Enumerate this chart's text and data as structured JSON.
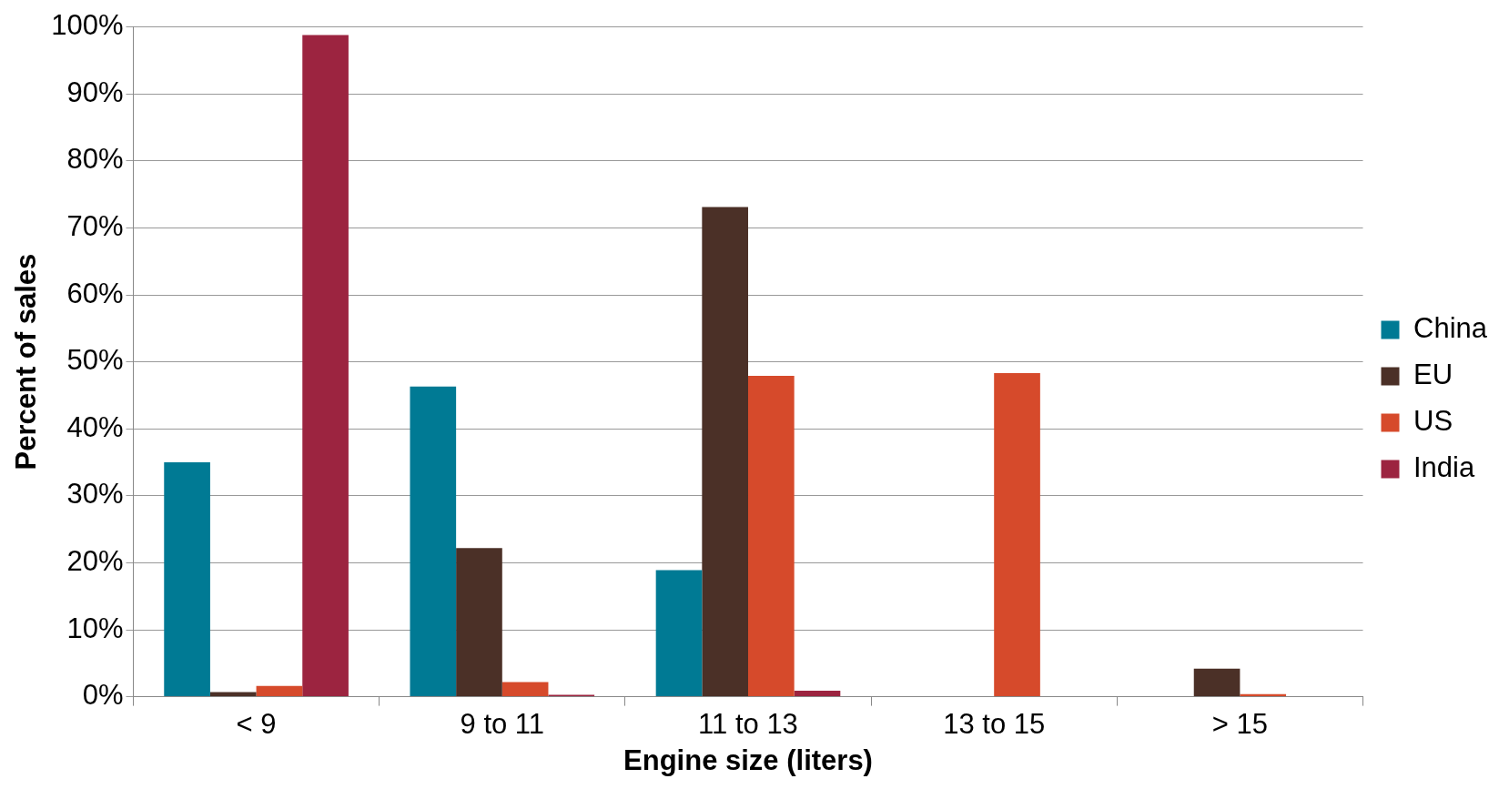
{
  "chart_data": {
    "type": "bar",
    "xlabel": "Engine size (liters)",
    "ylabel": "Percent of sales",
    "categories": [
      "< 9",
      "9 to 11",
      "11 to 13",
      "13 to 15",
      "> 15"
    ],
    "series": [
      {
        "name": "China",
        "color": "#007a94",
        "values": [
          35.0,
          46.3,
          18.9,
          null,
          null
        ]
      },
      {
        "name": "EU",
        "color": "#4b3027",
        "values": [
          0.7,
          22.2,
          73.1,
          null,
          4.2
        ]
      },
      {
        "name": "US",
        "color": "#d64a2b",
        "values": [
          1.6,
          2.2,
          47.9,
          48.3,
          0.4
        ]
      },
      {
        "name": "India",
        "color": "#9c2440",
        "values": [
          98.8,
          0.3,
          0.9,
          null,
          null
        ]
      }
    ],
    "ylim": [
      0,
      100
    ],
    "yticks": [
      {
        "value": 0,
        "label": "0%"
      },
      {
        "value": 10,
        "label": "10%"
      },
      {
        "value": 20,
        "label": "20%"
      },
      {
        "value": 30,
        "label": "30%"
      },
      {
        "value": 40,
        "label": "40%"
      },
      {
        "value": 50,
        "label": "50%"
      },
      {
        "value": 60,
        "label": "60%"
      },
      {
        "value": 70,
        "label": "70%"
      },
      {
        "value": 80,
        "label": "80%"
      },
      {
        "value": 90,
        "label": "90%"
      },
      {
        "value": 100,
        "label": "100%"
      }
    ],
    "grid": "y",
    "legend": "right"
  }
}
